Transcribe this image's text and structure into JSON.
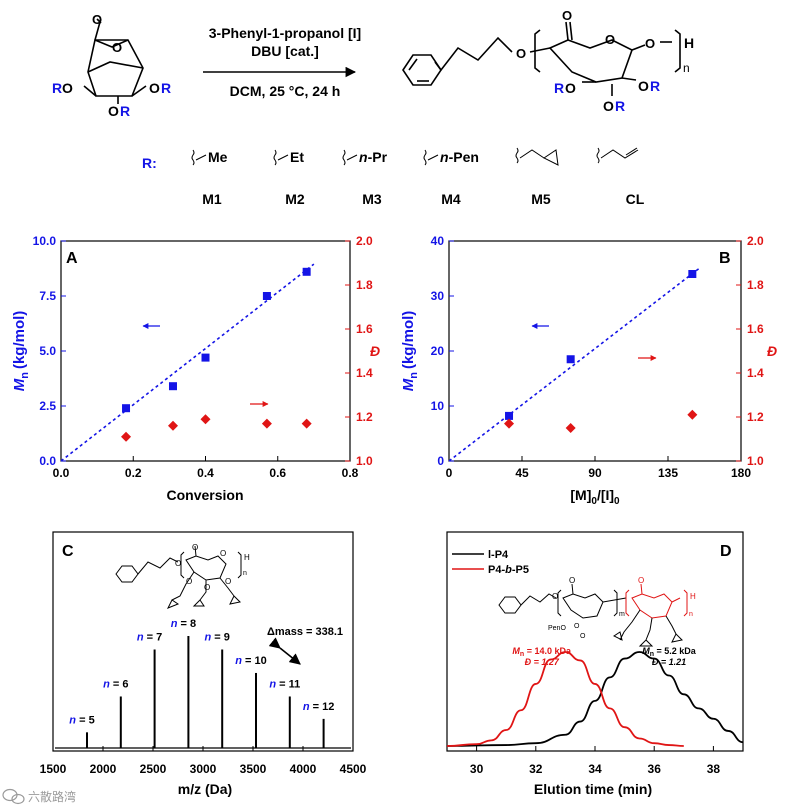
{
  "scheme": {
    "reagent_line1": "3-Phenyl-1-propanol [I]",
    "reagent_line2": "DBU [cat.]",
    "conditions": "DCM, 25 °C, 24 h",
    "subscript_n": "n",
    "atom_O": "O",
    "atom_H": "H",
    "atom_R": "R",
    "r_label": "R:",
    "substituents": [
      "Me",
      "Et",
      "n-Pr",
      "n-Pen",
      "",
      ""
    ],
    "monomers": [
      "M1",
      "M2",
      "M3",
      "M4",
      "M5",
      "CL"
    ]
  },
  "panels": {
    "A": "A",
    "B": "B",
    "C": "C",
    "D": "D"
  },
  "chart_data": [
    {
      "type": "scatter",
      "panel": "A",
      "title": "",
      "xlabel": "Conversion",
      "ylabel": "Mn (kg/mol)",
      "ylabel_main": "M",
      "ylabel_sub": "n",
      "ylabel_unit": "(kg/mol)",
      "y2label": "Đ",
      "xlim": [
        0,
        0.8
      ],
      "ylim": [
        0,
        10
      ],
      "y2lim": [
        1.0,
        2.0
      ],
      "x_ticks": [
        "0.0",
        "0.2",
        "0.4",
        "0.6",
        "0.8"
      ],
      "y_ticks": [
        "0.0",
        "2.5",
        "5.0",
        "7.5",
        "10.0"
      ],
      "y2_ticks": [
        "1.0",
        "1.2",
        "1.4",
        "1.6",
        "1.8",
        "2.0"
      ],
      "series": [
        {
          "name": "Mn",
          "axis": "left",
          "marker": "square",
          "color": "#1414e6",
          "x": [
            0.18,
            0.31,
            0.4,
            0.57,
            0.68
          ],
          "y": [
            2.4,
            3.4,
            4.7,
            7.5,
            8.6
          ]
        },
        {
          "name": "Đ",
          "axis": "right",
          "marker": "diamond",
          "color": "#e01515",
          "x": [
            0.18,
            0.31,
            0.4,
            0.57,
            0.68
          ],
          "y": [
            1.11,
            1.16,
            1.19,
            1.17,
            1.17
          ]
        }
      ],
      "fit_line": {
        "color": "#1414e6",
        "x": [
          0,
          0.7
        ],
        "y": [
          0,
          8.95
        ]
      }
    },
    {
      "type": "scatter",
      "panel": "B",
      "title": "",
      "xlabel": "[M]0/[I]0",
      "xlabel_a": "[M]",
      "xlabel_b": "/[I]",
      "xlabel_sub": "0",
      "ylabel": "Mn (kg/mol)",
      "ylabel_main": "M",
      "ylabel_sub": "n",
      "ylabel_unit": "(kg/mol)",
      "y2label": "Đ",
      "xlim": [
        0,
        180
      ],
      "ylim": [
        0,
        40
      ],
      "y2lim": [
        1.0,
        2.0
      ],
      "x_ticks": [
        "0",
        "45",
        "90",
        "135",
        "180"
      ],
      "y_ticks": [
        "0",
        "10",
        "20",
        "30",
        "40"
      ],
      "y2_ticks": [
        "1.0",
        "1.2",
        "1.4",
        "1.6",
        "1.8",
        "2.0"
      ],
      "series": [
        {
          "name": "Mn",
          "axis": "left",
          "marker": "square",
          "color": "#1414e6",
          "x": [
            37,
            75,
            150
          ],
          "y": [
            8.2,
            18.5,
            34.0
          ]
        },
        {
          "name": "Đ",
          "axis": "right",
          "marker": "diamond",
          "color": "#e01515",
          "x": [
            37,
            75,
            150
          ],
          "y": [
            1.17,
            1.15,
            1.21
          ]
        }
      ],
      "fit_line": {
        "color": "#1414e6",
        "x": [
          0,
          155
        ],
        "y": [
          0,
          35.2
        ]
      }
    },
    {
      "type": "bar",
      "panel": "C",
      "title": "",
      "xlabel": "m/z (Da)",
      "ylabel": "",
      "xlim": [
        1500,
        4500
      ],
      "x_ticks": [
        "1500",
        "2000",
        "2500",
        "3000",
        "3500",
        "4000",
        "4500"
      ],
      "peaks": [
        {
          "label_n": "n",
          "label_eq": " = 5",
          "mz": 1840,
          "rel_intensity": 0.14
        },
        {
          "label_n": "n",
          "label_eq": " = 6",
          "mz": 2178,
          "rel_intensity": 0.46
        },
        {
          "label_n": "n",
          "label_eq": " = 7",
          "mz": 2516,
          "rel_intensity": 0.88
        },
        {
          "label_n": "n",
          "label_eq": " = 8",
          "mz": 2854,
          "rel_intensity": 1.0
        },
        {
          "label_n": "n",
          "label_eq": " = 9",
          "mz": 3192,
          "rel_intensity": 0.88
        },
        {
          "label_n": "n",
          "label_eq": " = 10",
          "mz": 3530,
          "rel_intensity": 0.67
        },
        {
          "label_n": "n",
          "label_eq": " = 11",
          "mz": 3868,
          "rel_intensity": 0.46
        },
        {
          "label_n": "n",
          "label_eq": " = 12",
          "mz": 4206,
          "rel_intensity": 0.26
        }
      ],
      "annotation": "Δmass = 338.1"
    },
    {
      "type": "line",
      "panel": "D",
      "title": "",
      "xlabel": "Elution time (min)",
      "ylabel": "",
      "xlim": [
        29,
        39
      ],
      "x_ticks": [
        "30",
        "32",
        "34",
        "36",
        "38"
      ],
      "legend_position": "top-left",
      "series": [
        {
          "name": "l-P4",
          "name_prefix": "l-P4",
          "name_suffix": "",
          "color": "#000000",
          "x": [
            29,
            31,
            32,
            33,
            33.5,
            34,
            34.5,
            35,
            35.5,
            36,
            36.5,
            37,
            37.5,
            38,
            38.5,
            39
          ],
          "y": [
            0.0,
            0.01,
            0.03,
            0.12,
            0.26,
            0.48,
            0.73,
            0.93,
            1.0,
            0.93,
            0.75,
            0.55,
            0.4,
            0.29,
            0.16,
            0.04
          ]
        },
        {
          "name": "P4-b-P5",
          "name_prefix": "P4-",
          "name_ital": "b",
          "name_suffix": "-P5",
          "color": "#e01515",
          "x": [
            29,
            30,
            30.5,
            31,
            31.5,
            32,
            32.5,
            33,
            33.5,
            34,
            34.5,
            35,
            35.5,
            36,
            36.5,
            37
          ],
          "y": [
            0.0,
            0.02,
            0.06,
            0.17,
            0.38,
            0.66,
            0.92,
            1.0,
            0.91,
            0.66,
            0.4,
            0.2,
            0.08,
            0.03,
            0.01,
            0.0
          ]
        }
      ],
      "annotations": [
        {
          "series": "P4-b-P5",
          "mn_label": "M",
          "mn_sub": "n",
          "mn_value": " = 14.0 kDa",
          "d_label": "Đ = 1.27"
        },
        {
          "series": "l-P4",
          "mn_label": "M",
          "mn_sub": "n",
          "mn_value": " = 5.2 kDa",
          "d_label": "Đ = 1.21"
        }
      ]
    }
  ],
  "watermark": "六散路湾",
  "watermark_icon": "wechat-icon",
  "colors": {
    "blue": "#1414e6",
    "red": "#e01515",
    "black": "#000000"
  }
}
